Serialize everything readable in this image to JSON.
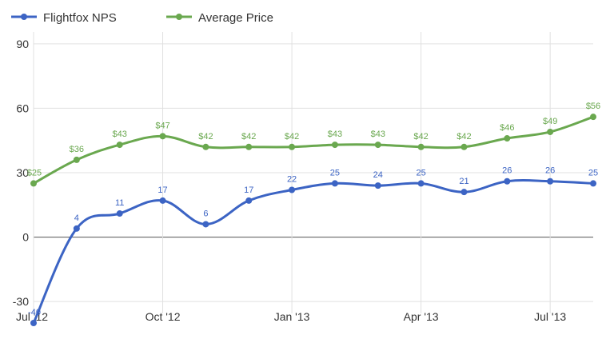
{
  "chart_data": {
    "type": "line",
    "title": "",
    "xlabel": "",
    "ylabel": "",
    "x_tick_labels": [
      "Jul '12",
      "Oct '12",
      "Jan '13",
      "Apr '13",
      "Jul '13"
    ],
    "y_ticks": [
      -30,
      0,
      30,
      60,
      90
    ],
    "y_tick_labels": [
      "-30",
      "0",
      "30",
      "60",
      "90"
    ],
    "ylim": [
      -40,
      100
    ],
    "grid": true,
    "legend_position": "top-left",
    "x": [
      "Jul '12",
      "Aug '12",
      "Sep '12",
      "Oct '12",
      "Nov '12",
      "Dec '12",
      "Jan '13",
      "Feb '13",
      "Mar '13",
      "Apr '13",
      "May '13",
      "Jun '13",
      "Jul '13",
      "Aug '13"
    ],
    "series": [
      {
        "name": "Flightfox NPS",
        "color": "#3c64c4",
        "values": [
          -40,
          4,
          11,
          17,
          6,
          17,
          22,
          25,
          24,
          25,
          21,
          26,
          26,
          25
        ],
        "labels": [
          "-40",
          "4",
          "11",
          "17",
          "6",
          "17",
          "22",
          "25",
          "24",
          "25",
          "21",
          "26",
          "26",
          "25"
        ]
      },
      {
        "name": "Average Price",
        "color": "#6aa84f",
        "values": [
          25,
          36,
          43,
          47,
          42,
          42,
          42,
          43,
          43,
          42,
          42,
          46,
          49,
          56
        ],
        "labels": [
          "$25",
          "$36",
          "$43",
          "$47",
          "$42",
          "$42",
          "$42",
          "$43",
          "$43",
          "$42",
          "$42",
          "$46",
          "$49",
          "$56"
        ]
      }
    ]
  }
}
